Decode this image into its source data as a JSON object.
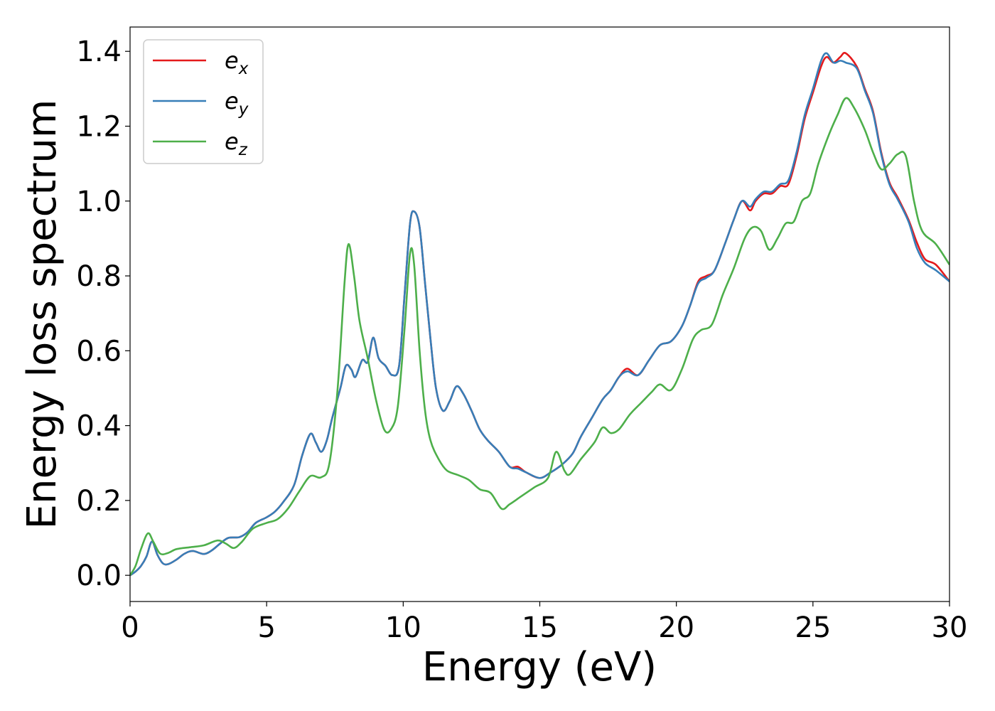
{
  "chart_data": {
    "type": "line",
    "xlabel": "Energy (eV)",
    "ylabel": "Energy loss spectrum",
    "xlim": [
      0,
      30
    ],
    "ylim": [
      -0.07,
      1.465
    ],
    "xticks": [
      0,
      5,
      10,
      15,
      20,
      25,
      30
    ],
    "yticks": [
      0.0,
      0.2,
      0.4,
      0.6,
      0.8,
      1.0,
      1.2,
      1.4
    ],
    "xtick_labels": [
      "0",
      "5",
      "10",
      "15",
      "20",
      "25",
      "30"
    ],
    "ytick_labels": [
      "0.0",
      "0.2",
      "0.4",
      "0.6",
      "0.8",
      "1.0",
      "1.2",
      "1.4"
    ],
    "grid": false,
    "legend_position": "top-left",
    "series": [
      {
        "name": "e_x",
        "legend_base": "e",
        "legend_sub": "x",
        "color": "#e41a1c",
        "points": [
          [
            0,
            0
          ],
          [
            0.2,
            0.01
          ],
          [
            0.4,
            0.025
          ],
          [
            0.6,
            0.05
          ],
          [
            0.8,
            0.09
          ],
          [
            1.0,
            0.055
          ],
          [
            1.2,
            0.032
          ],
          [
            1.4,
            0.03
          ],
          [
            1.7,
            0.042
          ],
          [
            2.0,
            0.058
          ],
          [
            2.3,
            0.065
          ],
          [
            2.7,
            0.057
          ],
          [
            3.0,
            0.067
          ],
          [
            3.3,
            0.085
          ],
          [
            3.6,
            0.1
          ],
          [
            4.0,
            0.102
          ],
          [
            4.3,
            0.115
          ],
          [
            4.6,
            0.14
          ],
          [
            5.0,
            0.155
          ],
          [
            5.3,
            0.17
          ],
          [
            5.6,
            0.195
          ],
          [
            6.0,
            0.24
          ],
          [
            6.3,
            0.32
          ],
          [
            6.6,
            0.378
          ],
          [
            6.8,
            0.355
          ],
          [
            7.0,
            0.33
          ],
          [
            7.2,
            0.36
          ],
          [
            7.4,
            0.42
          ],
          [
            7.7,
            0.5
          ],
          [
            7.9,
            0.56
          ],
          [
            8.1,
            0.55
          ],
          [
            8.25,
            0.53
          ],
          [
            8.5,
            0.575
          ],
          [
            8.7,
            0.57
          ],
          [
            8.9,
            0.635
          ],
          [
            9.1,
            0.58
          ],
          [
            9.35,
            0.56
          ],
          [
            9.6,
            0.535
          ],
          [
            9.85,
            0.56
          ],
          [
            10.05,
            0.75
          ],
          [
            10.25,
            0.94
          ],
          [
            10.4,
            0.972
          ],
          [
            10.6,
            0.93
          ],
          [
            10.8,
            0.78
          ],
          [
            11.0,
            0.63
          ],
          [
            11.2,
            0.5
          ],
          [
            11.45,
            0.44
          ],
          [
            11.7,
            0.465
          ],
          [
            11.95,
            0.505
          ],
          [
            12.2,
            0.485
          ],
          [
            12.5,
            0.44
          ],
          [
            12.8,
            0.39
          ],
          [
            13.1,
            0.36
          ],
          [
            13.5,
            0.33
          ],
          [
            13.9,
            0.29
          ],
          [
            14.2,
            0.29
          ],
          [
            14.5,
            0.275
          ],
          [
            15.0,
            0.26
          ],
          [
            15.4,
            0.275
          ],
          [
            15.8,
            0.295
          ],
          [
            16.2,
            0.325
          ],
          [
            16.5,
            0.37
          ],
          [
            16.9,
            0.42
          ],
          [
            17.3,
            0.47
          ],
          [
            17.6,
            0.495
          ],
          [
            17.9,
            0.53
          ],
          [
            18.2,
            0.552
          ],
          [
            18.6,
            0.535
          ],
          [
            19.0,
            0.575
          ],
          [
            19.4,
            0.615
          ],
          [
            19.8,
            0.625
          ],
          [
            20.2,
            0.665
          ],
          [
            20.5,
            0.72
          ],
          [
            20.8,
            0.785
          ],
          [
            21.1,
            0.8
          ],
          [
            21.4,
            0.815
          ],
          [
            21.8,
            0.89
          ],
          [
            22.1,
            0.95
          ],
          [
            22.4,
            1.0
          ],
          [
            22.7,
            0.975
          ],
          [
            22.9,
            1.0
          ],
          [
            23.2,
            1.02
          ],
          [
            23.5,
            1.02
          ],
          [
            23.8,
            1.04
          ],
          [
            24.1,
            1.045
          ],
          [
            24.4,
            1.12
          ],
          [
            24.7,
            1.22
          ],
          [
            25.0,
            1.29
          ],
          [
            25.3,
            1.36
          ],
          [
            25.5,
            1.385
          ],
          [
            25.75,
            1.37
          ],
          [
            26.0,
            1.385
          ],
          [
            26.2,
            1.395
          ],
          [
            26.6,
            1.36
          ],
          [
            26.9,
            1.3
          ],
          [
            27.2,
            1.24
          ],
          [
            27.5,
            1.13
          ],
          [
            27.8,
            1.05
          ],
          [
            28.1,
            1.01
          ],
          [
            28.5,
            0.95
          ],
          [
            28.8,
            0.89
          ],
          [
            29.1,
            0.845
          ],
          [
            29.5,
            0.83
          ],
          [
            30.0,
            0.785
          ]
        ]
      },
      {
        "name": "e_y",
        "legend_base": "e",
        "legend_sub": "y",
        "color": "#377eb8",
        "points": [
          [
            0,
            0
          ],
          [
            0.2,
            0.01
          ],
          [
            0.4,
            0.025
          ],
          [
            0.6,
            0.05
          ],
          [
            0.8,
            0.09
          ],
          [
            1.0,
            0.055
          ],
          [
            1.2,
            0.032
          ],
          [
            1.4,
            0.03
          ],
          [
            1.7,
            0.042
          ],
          [
            2.0,
            0.058
          ],
          [
            2.3,
            0.065
          ],
          [
            2.7,
            0.057
          ],
          [
            3.0,
            0.067
          ],
          [
            3.3,
            0.085
          ],
          [
            3.6,
            0.1
          ],
          [
            4.0,
            0.102
          ],
          [
            4.3,
            0.115
          ],
          [
            4.6,
            0.14
          ],
          [
            5.0,
            0.155
          ],
          [
            5.3,
            0.17
          ],
          [
            5.6,
            0.195
          ],
          [
            6.0,
            0.24
          ],
          [
            6.3,
            0.32
          ],
          [
            6.6,
            0.378
          ],
          [
            6.8,
            0.355
          ],
          [
            7.0,
            0.33
          ],
          [
            7.2,
            0.36
          ],
          [
            7.4,
            0.42
          ],
          [
            7.7,
            0.5
          ],
          [
            7.9,
            0.56
          ],
          [
            8.1,
            0.55
          ],
          [
            8.25,
            0.53
          ],
          [
            8.5,
            0.575
          ],
          [
            8.7,
            0.57
          ],
          [
            8.9,
            0.635
          ],
          [
            9.1,
            0.58
          ],
          [
            9.35,
            0.56
          ],
          [
            9.6,
            0.535
          ],
          [
            9.85,
            0.56
          ],
          [
            10.05,
            0.75
          ],
          [
            10.25,
            0.94
          ],
          [
            10.4,
            0.972
          ],
          [
            10.6,
            0.93
          ],
          [
            10.8,
            0.78
          ],
          [
            11.0,
            0.63
          ],
          [
            11.2,
            0.5
          ],
          [
            11.45,
            0.44
          ],
          [
            11.7,
            0.465
          ],
          [
            11.95,
            0.505
          ],
          [
            12.2,
            0.485
          ],
          [
            12.5,
            0.44
          ],
          [
            12.8,
            0.39
          ],
          [
            13.1,
            0.36
          ],
          [
            13.5,
            0.33
          ],
          [
            13.9,
            0.29
          ],
          [
            14.2,
            0.285
          ],
          [
            14.5,
            0.275
          ],
          [
            15.0,
            0.26
          ],
          [
            15.4,
            0.275
          ],
          [
            15.8,
            0.295
          ],
          [
            16.2,
            0.325
          ],
          [
            16.5,
            0.37
          ],
          [
            16.9,
            0.42
          ],
          [
            17.3,
            0.47
          ],
          [
            17.6,
            0.495
          ],
          [
            17.9,
            0.53
          ],
          [
            18.2,
            0.545
          ],
          [
            18.6,
            0.535
          ],
          [
            19.0,
            0.575
          ],
          [
            19.4,
            0.615
          ],
          [
            19.8,
            0.625
          ],
          [
            20.2,
            0.665
          ],
          [
            20.5,
            0.72
          ],
          [
            20.8,
            0.78
          ],
          [
            21.1,
            0.795
          ],
          [
            21.4,
            0.815
          ],
          [
            21.8,
            0.89
          ],
          [
            22.1,
            0.95
          ],
          [
            22.4,
            1.0
          ],
          [
            22.7,
            0.985
          ],
          [
            22.9,
            1.005
          ],
          [
            23.2,
            1.025
          ],
          [
            23.5,
            1.025
          ],
          [
            23.8,
            1.045
          ],
          [
            24.1,
            1.055
          ],
          [
            24.4,
            1.13
          ],
          [
            24.7,
            1.23
          ],
          [
            25.0,
            1.3
          ],
          [
            25.3,
            1.375
          ],
          [
            25.5,
            1.395
          ],
          [
            25.75,
            1.37
          ],
          [
            26.0,
            1.375
          ],
          [
            26.2,
            1.37
          ],
          [
            26.6,
            1.355
          ],
          [
            26.9,
            1.295
          ],
          [
            27.2,
            1.235
          ],
          [
            27.5,
            1.125
          ],
          [
            27.8,
            1.045
          ],
          [
            28.1,
            1.005
          ],
          [
            28.5,
            0.945
          ],
          [
            28.8,
            0.875
          ],
          [
            29.1,
            0.835
          ],
          [
            29.5,
            0.815
          ],
          [
            30.0,
            0.785
          ]
        ]
      },
      {
        "name": "e_z",
        "legend_base": "e",
        "legend_sub": "z",
        "color": "#4daf4a",
        "points": [
          [
            0,
            0
          ],
          [
            0.2,
            0.025
          ],
          [
            0.4,
            0.07
          ],
          [
            0.65,
            0.112
          ],
          [
            0.85,
            0.09
          ],
          [
            1.1,
            0.058
          ],
          [
            1.4,
            0.06
          ],
          [
            1.7,
            0.07
          ],
          [
            2.2,
            0.075
          ],
          [
            2.7,
            0.08
          ],
          [
            3.2,
            0.093
          ],
          [
            3.5,
            0.085
          ],
          [
            3.8,
            0.073
          ],
          [
            4.1,
            0.09
          ],
          [
            4.5,
            0.125
          ],
          [
            5.0,
            0.14
          ],
          [
            5.4,
            0.15
          ],
          [
            5.8,
            0.18
          ],
          [
            6.2,
            0.225
          ],
          [
            6.6,
            0.265
          ],
          [
            7.0,
            0.262
          ],
          [
            7.3,
            0.3
          ],
          [
            7.6,
            0.5
          ],
          [
            7.85,
            0.78
          ],
          [
            8.0,
            0.885
          ],
          [
            8.2,
            0.8
          ],
          [
            8.4,
            0.68
          ],
          [
            8.7,
            0.58
          ],
          [
            9.0,
            0.47
          ],
          [
            9.3,
            0.39
          ],
          [
            9.55,
            0.39
          ],
          [
            9.8,
            0.45
          ],
          [
            10.05,
            0.66
          ],
          [
            10.25,
            0.86
          ],
          [
            10.4,
            0.83
          ],
          [
            10.6,
            0.6
          ],
          [
            10.8,
            0.44
          ],
          [
            11.0,
            0.36
          ],
          [
            11.3,
            0.31
          ],
          [
            11.6,
            0.28
          ],
          [
            12.0,
            0.268
          ],
          [
            12.4,
            0.255
          ],
          [
            12.8,
            0.23
          ],
          [
            13.2,
            0.22
          ],
          [
            13.6,
            0.178
          ],
          [
            13.9,
            0.19
          ],
          [
            14.3,
            0.21
          ],
          [
            14.8,
            0.235
          ],
          [
            15.3,
            0.26
          ],
          [
            15.6,
            0.33
          ],
          [
            15.9,
            0.28
          ],
          [
            16.1,
            0.27
          ],
          [
            16.5,
            0.31
          ],
          [
            17.0,
            0.355
          ],
          [
            17.3,
            0.395
          ],
          [
            17.6,
            0.38
          ],
          [
            17.9,
            0.39
          ],
          [
            18.3,
            0.43
          ],
          [
            18.7,
            0.46
          ],
          [
            19.1,
            0.49
          ],
          [
            19.4,
            0.51
          ],
          [
            19.8,
            0.495
          ],
          [
            20.2,
            0.55
          ],
          [
            20.6,
            0.63
          ],
          [
            20.9,
            0.655
          ],
          [
            21.3,
            0.67
          ],
          [
            21.7,
            0.75
          ],
          [
            22.1,
            0.82
          ],
          [
            22.5,
            0.9
          ],
          [
            22.8,
            0.93
          ],
          [
            23.1,
            0.92
          ],
          [
            23.4,
            0.87
          ],
          [
            23.7,
            0.9
          ],
          [
            24.0,
            0.94
          ],
          [
            24.3,
            0.945
          ],
          [
            24.6,
            1.0
          ],
          [
            24.9,
            1.02
          ],
          [
            25.2,
            1.1
          ],
          [
            25.6,
            1.18
          ],
          [
            25.9,
            1.23
          ],
          [
            26.2,
            1.275
          ],
          [
            26.5,
            1.25
          ],
          [
            26.9,
            1.19
          ],
          [
            27.2,
            1.13
          ],
          [
            27.5,
            1.085
          ],
          [
            27.8,
            1.1
          ],
          [
            28.1,
            1.125
          ],
          [
            28.4,
            1.12
          ],
          [
            28.7,
            1.0
          ],
          [
            29.0,
            0.92
          ],
          [
            29.5,
            0.885
          ],
          [
            30.0,
            0.83
          ]
        ]
      }
    ]
  }
}
